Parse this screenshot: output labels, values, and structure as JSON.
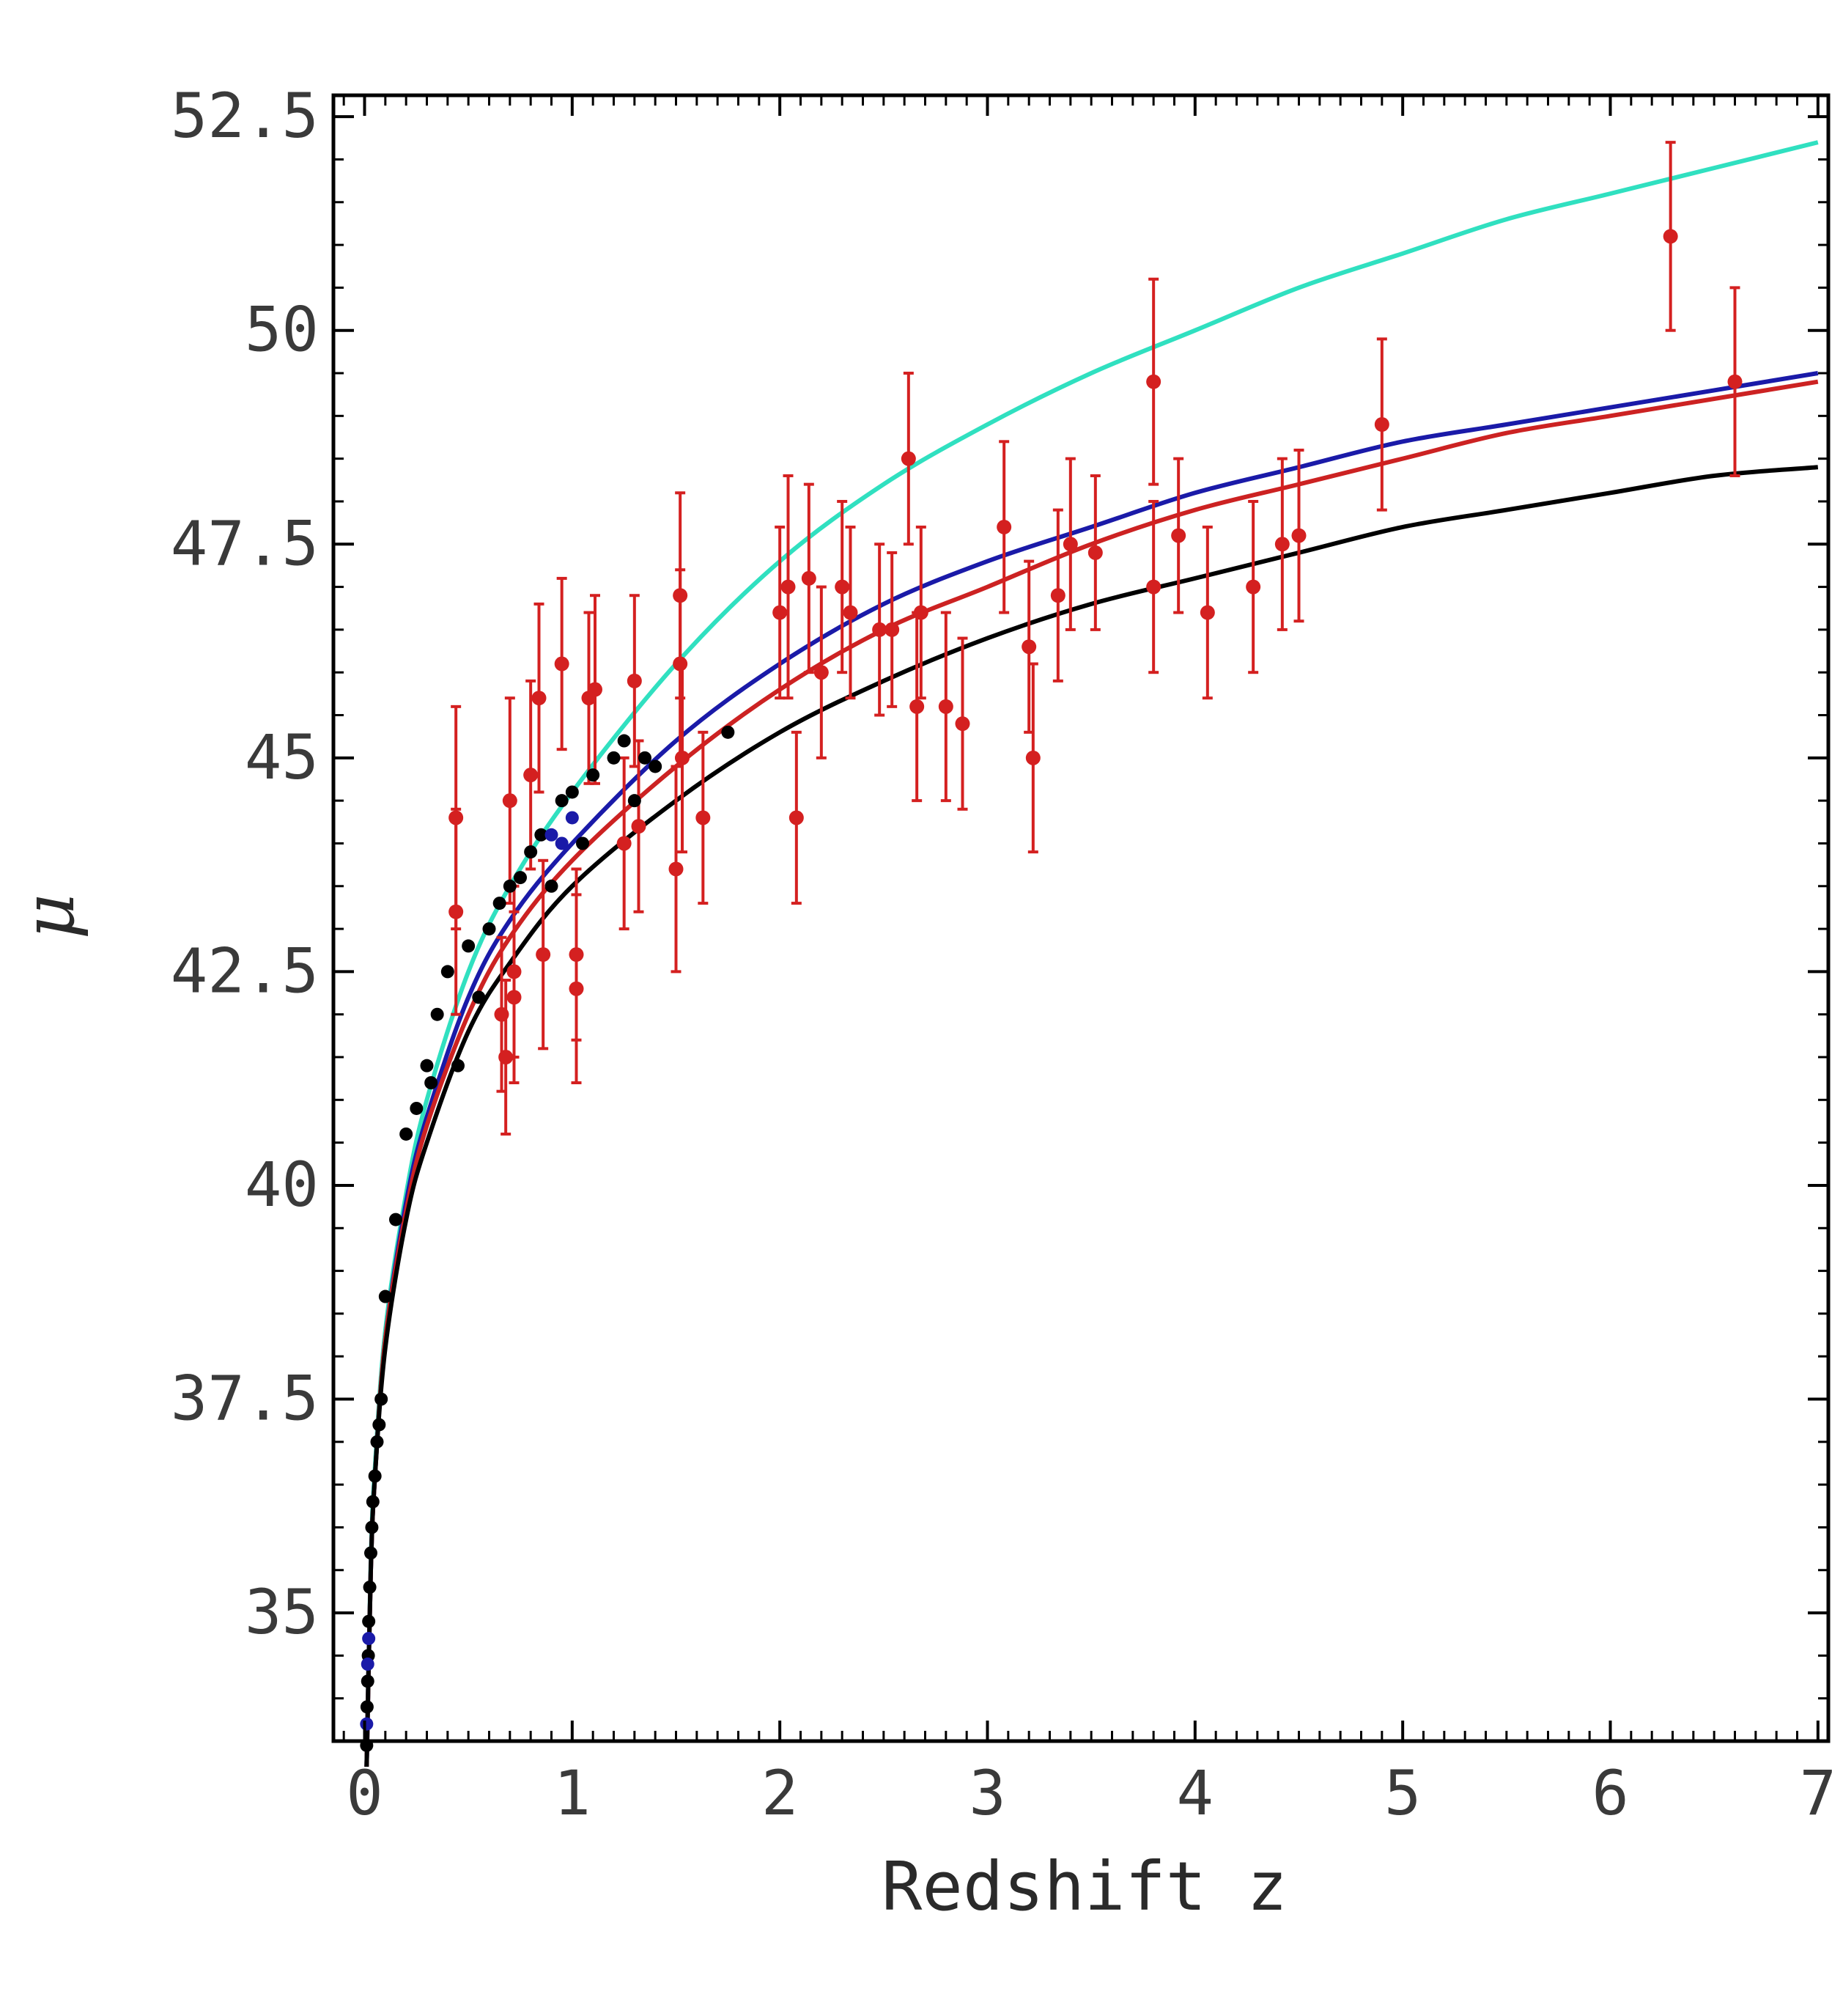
{
  "chart_data": {
    "type": "scatter",
    "title": "",
    "xlabel": "Redshift z",
    "ylabel": "μ",
    "xlim": [
      -0.15,
      7.05
    ],
    "ylim": [
      33.5,
      52.75
    ],
    "x_ticks": [
      "0",
      "1",
      "2",
      "3",
      "4",
      "5",
      "6",
      "7"
    ],
    "x_tick_values": [
      0,
      1,
      2,
      3,
      4,
      5,
      6,
      7
    ],
    "y_ticks": [
      "35",
      "37.5",
      "40",
      "42.5",
      "45",
      "47.5",
      "50",
      "52.5"
    ],
    "y_tick_values": [
      35,
      37.5,
      40,
      42.5,
      45,
      47.5,
      50,
      52.5
    ],
    "grid": false,
    "curves": [
      {
        "color": "#30e0c0",
        "x": [
          0.01,
          0.03,
          0.05,
          0.1,
          0.2,
          0.3,
          0.5,
          0.7,
          1,
          1.5,
          2,
          2.5,
          3,
          3.5,
          4,
          4.5,
          5,
          5.5,
          6,
          6.5,
          7
        ],
        "y": [
          33.2,
          35.6,
          36.7,
          38.3,
          39.9,
          41.0,
          42.5,
          43.5,
          44.6,
          46.1,
          47.3,
          48.2,
          48.9,
          49.5,
          50.0,
          50.5,
          50.9,
          51.3,
          51.6,
          51.9,
          52.2
        ]
      },
      {
        "color": "#1a1aa8",
        "x": [
          0.01,
          0.03,
          0.05,
          0.1,
          0.2,
          0.3,
          0.5,
          0.7,
          1,
          1.5,
          2,
          2.5,
          3,
          3.5,
          4,
          4.5,
          5,
          5.5,
          6,
          6.5,
          7
        ],
        "y": [
          33.2,
          35.5,
          36.6,
          38.2,
          39.8,
          40.8,
          42.2,
          43.1,
          44.0,
          45.2,
          46.1,
          46.8,
          47.3,
          47.7,
          48.1,
          48.4,
          48.7,
          48.9,
          49.1,
          49.3,
          49.5
        ]
      },
      {
        "color": "#cc2222",
        "x": [
          0.01,
          0.03,
          0.05,
          0.1,
          0.2,
          0.3,
          0.5,
          0.7,
          1,
          1.5,
          2,
          2.5,
          3,
          3.5,
          4,
          4.5,
          5,
          5.5,
          6,
          6.5,
          7
        ],
        "y": [
          33.2,
          35.5,
          36.6,
          38.2,
          39.7,
          40.7,
          42.0,
          42.9,
          43.8,
          44.9,
          45.8,
          46.5,
          47.0,
          47.5,
          47.9,
          48.2,
          48.5,
          48.8,
          49.0,
          49.2,
          49.4
        ]
      },
      {
        "color": "#000000",
        "x": [
          0.01,
          0.03,
          0.05,
          0.1,
          0.2,
          0.3,
          0.5,
          0.7,
          1,
          1.5,
          2,
          2.5,
          3,
          3.5,
          4,
          4.5,
          5,
          5.5,
          6,
          6.5,
          7
        ],
        "y": [
          33.2,
          35.5,
          36.6,
          38.1,
          39.6,
          40.5,
          41.8,
          42.6,
          43.5,
          44.5,
          45.3,
          45.9,
          46.4,
          46.8,
          47.1,
          47.4,
          47.7,
          47.9,
          48.1,
          48.3,
          48.4
        ]
      }
    ],
    "series": [
      {
        "color": "#d42020",
        "points": [
          {
            "x": 0.44,
            "y": 44.3,
            "err": 1.3
          },
          {
            "x": 0.44,
            "y": 43.2,
            "err": 1.2
          },
          {
            "x": 0.66,
            "y": 42.0,
            "err": 0.9
          },
          {
            "x": 0.68,
            "y": 41.5,
            "err": 0.9
          },
          {
            "x": 0.7,
            "y": 44.5,
            "err": 1.2
          },
          {
            "x": 0.72,
            "y": 42.5,
            "err": 1.0
          },
          {
            "x": 0.72,
            "y": 42.2,
            "err": 1.0
          },
          {
            "x": 0.8,
            "y": 44.8,
            "err": 1.1
          },
          {
            "x": 0.84,
            "y": 45.7,
            "err": 1.1
          },
          {
            "x": 0.86,
            "y": 42.7,
            "err": 1.1
          },
          {
            "x": 0.95,
            "y": 46.1,
            "err": 1.0
          },
          {
            "x": 1.02,
            "y": 42.3,
            "err": 1.1
          },
          {
            "x": 1.02,
            "y": 42.7,
            "err": 1.0
          },
          {
            "x": 1.08,
            "y": 45.7,
            "err": 1.0
          },
          {
            "x": 1.11,
            "y": 45.8,
            "err": 1.1
          },
          {
            "x": 1.25,
            "y": 44.0,
            "err": 1.0
          },
          {
            "x": 1.3,
            "y": 45.9,
            "err": 1.0
          },
          {
            "x": 1.32,
            "y": 44.2,
            "err": 1.0
          },
          {
            "x": 1.5,
            "y": 43.7,
            "err": 1.2
          },
          {
            "x": 1.52,
            "y": 46.9,
            "err": 1.2
          },
          {
            "x": 1.52,
            "y": 46.1,
            "err": 1.1
          },
          {
            "x": 1.53,
            "y": 45.0,
            "err": 1.1
          },
          {
            "x": 1.63,
            "y": 44.3,
            "err": 1.0
          },
          {
            "x": 2.0,
            "y": 46.7,
            "err": 1.0
          },
          {
            "x": 2.04,
            "y": 47.0,
            "err": 1.3
          },
          {
            "x": 2.08,
            "y": 44.3,
            "err": 1.0
          },
          {
            "x": 2.14,
            "y": 47.1,
            "err": 1.1
          },
          {
            "x": 2.2,
            "y": 46.0,
            "err": 1.0
          },
          {
            "x": 2.3,
            "y": 47.0,
            "err": 1.0
          },
          {
            "x": 2.34,
            "y": 46.7,
            "err": 1.0
          },
          {
            "x": 2.48,
            "y": 46.5,
            "err": 1.0
          },
          {
            "x": 2.54,
            "y": 46.5,
            "err": 0.9
          },
          {
            "x": 2.62,
            "y": 48.5,
            "err": 1.0
          },
          {
            "x": 2.66,
            "y": 45.6,
            "err": 1.1
          },
          {
            "x": 2.68,
            "y": 46.7,
            "err": 1.0
          },
          {
            "x": 2.8,
            "y": 45.6,
            "err": 1.1
          },
          {
            "x": 2.88,
            "y": 45.4,
            "err": 1.0
          },
          {
            "x": 3.08,
            "y": 47.7,
            "err": 1.0
          },
          {
            "x": 3.2,
            "y": 46.3,
            "err": 1.0
          },
          {
            "x": 3.22,
            "y": 45.0,
            "err": 1.1
          },
          {
            "x": 3.34,
            "y": 46.9,
            "err": 1.0
          },
          {
            "x": 3.4,
            "y": 47.5,
            "err": 1.0
          },
          {
            "x": 3.52,
            "y": 47.4,
            "err": 0.9
          },
          {
            "x": 3.8,
            "y": 49.4,
            "err": 1.2
          },
          {
            "x": 3.8,
            "y": 47.0,
            "err": 1.0
          },
          {
            "x": 3.92,
            "y": 47.6,
            "err": 0.9
          },
          {
            "x": 4.06,
            "y": 46.7,
            "err": 1.0
          },
          {
            "x": 4.28,
            "y": 47.0,
            "err": 1.0
          },
          {
            "x": 4.42,
            "y": 47.5,
            "err": 1.0
          },
          {
            "x": 4.5,
            "y": 47.6,
            "err": 1.0
          },
          {
            "x": 4.9,
            "y": 48.9,
            "err": 1.0
          },
          {
            "x": 6.29,
            "y": 51.1,
            "err": 1.1
          },
          {
            "x": 6.6,
            "y": 49.4,
            "err": 1.1
          }
        ]
      },
      {
        "color": "#000000",
        "points": [
          {
            "x": 0.01,
            "y": 33.45
          },
          {
            "x": 0.012,
            "y": 33.9
          },
          {
            "x": 0.015,
            "y": 34.2
          },
          {
            "x": 0.018,
            "y": 34.5
          },
          {
            "x": 0.02,
            "y": 34.9
          },
          {
            "x": 0.025,
            "y": 35.3
          },
          {
            "x": 0.03,
            "y": 35.7
          },
          {
            "x": 0.035,
            "y": 36.0
          },
          {
            "x": 0.04,
            "y": 36.3
          },
          {
            "x": 0.05,
            "y": 36.6
          },
          {
            "x": 0.06,
            "y": 37.0
          },
          {
            "x": 0.07,
            "y": 37.2
          },
          {
            "x": 0.08,
            "y": 37.5
          },
          {
            "x": 0.1,
            "y": 38.7
          },
          {
            "x": 0.15,
            "y": 39.6
          },
          {
            "x": 0.2,
            "y": 40.6
          },
          {
            "x": 0.25,
            "y": 40.9
          },
          {
            "x": 0.3,
            "y": 41.4
          },
          {
            "x": 0.32,
            "y": 41.2
          },
          {
            "x": 0.35,
            "y": 42.0
          },
          {
            "x": 0.4,
            "y": 42.5
          },
          {
            "x": 0.45,
            "y": 41.4
          },
          {
            "x": 0.5,
            "y": 42.8
          },
          {
            "x": 0.55,
            "y": 42.2
          },
          {
            "x": 0.6,
            "y": 43.0
          },
          {
            "x": 0.65,
            "y": 43.3
          },
          {
            "x": 0.7,
            "y": 43.5
          },
          {
            "x": 0.75,
            "y": 43.6
          },
          {
            "x": 0.8,
            "y": 43.9
          },
          {
            "x": 0.85,
            "y": 44.1
          },
          {
            "x": 0.9,
            "y": 43.5
          },
          {
            "x": 0.95,
            "y": 44.5
          },
          {
            "x": 1.0,
            "y": 44.6
          },
          {
            "x": 1.05,
            "y": 44.0
          },
          {
            "x": 1.1,
            "y": 44.8
          },
          {
            "x": 1.2,
            "y": 45.0
          },
          {
            "x": 1.25,
            "y": 45.2
          },
          {
            "x": 1.3,
            "y": 44.5
          },
          {
            "x": 1.35,
            "y": 45.0
          },
          {
            "x": 1.4,
            "y": 44.9
          },
          {
            "x": 1.75,
            "y": 45.3
          }
        ]
      },
      {
        "color": "#1a1aa8",
        "points": [
          {
            "x": 0.01,
            "y": 33.7
          },
          {
            "x": 0.015,
            "y": 34.4
          },
          {
            "x": 0.02,
            "y": 34.7
          },
          {
            "x": 0.9,
            "y": 44.1
          },
          {
            "x": 0.95,
            "y": 44.0
          },
          {
            "x": 1.0,
            "y": 44.3
          }
        ]
      }
    ]
  }
}
